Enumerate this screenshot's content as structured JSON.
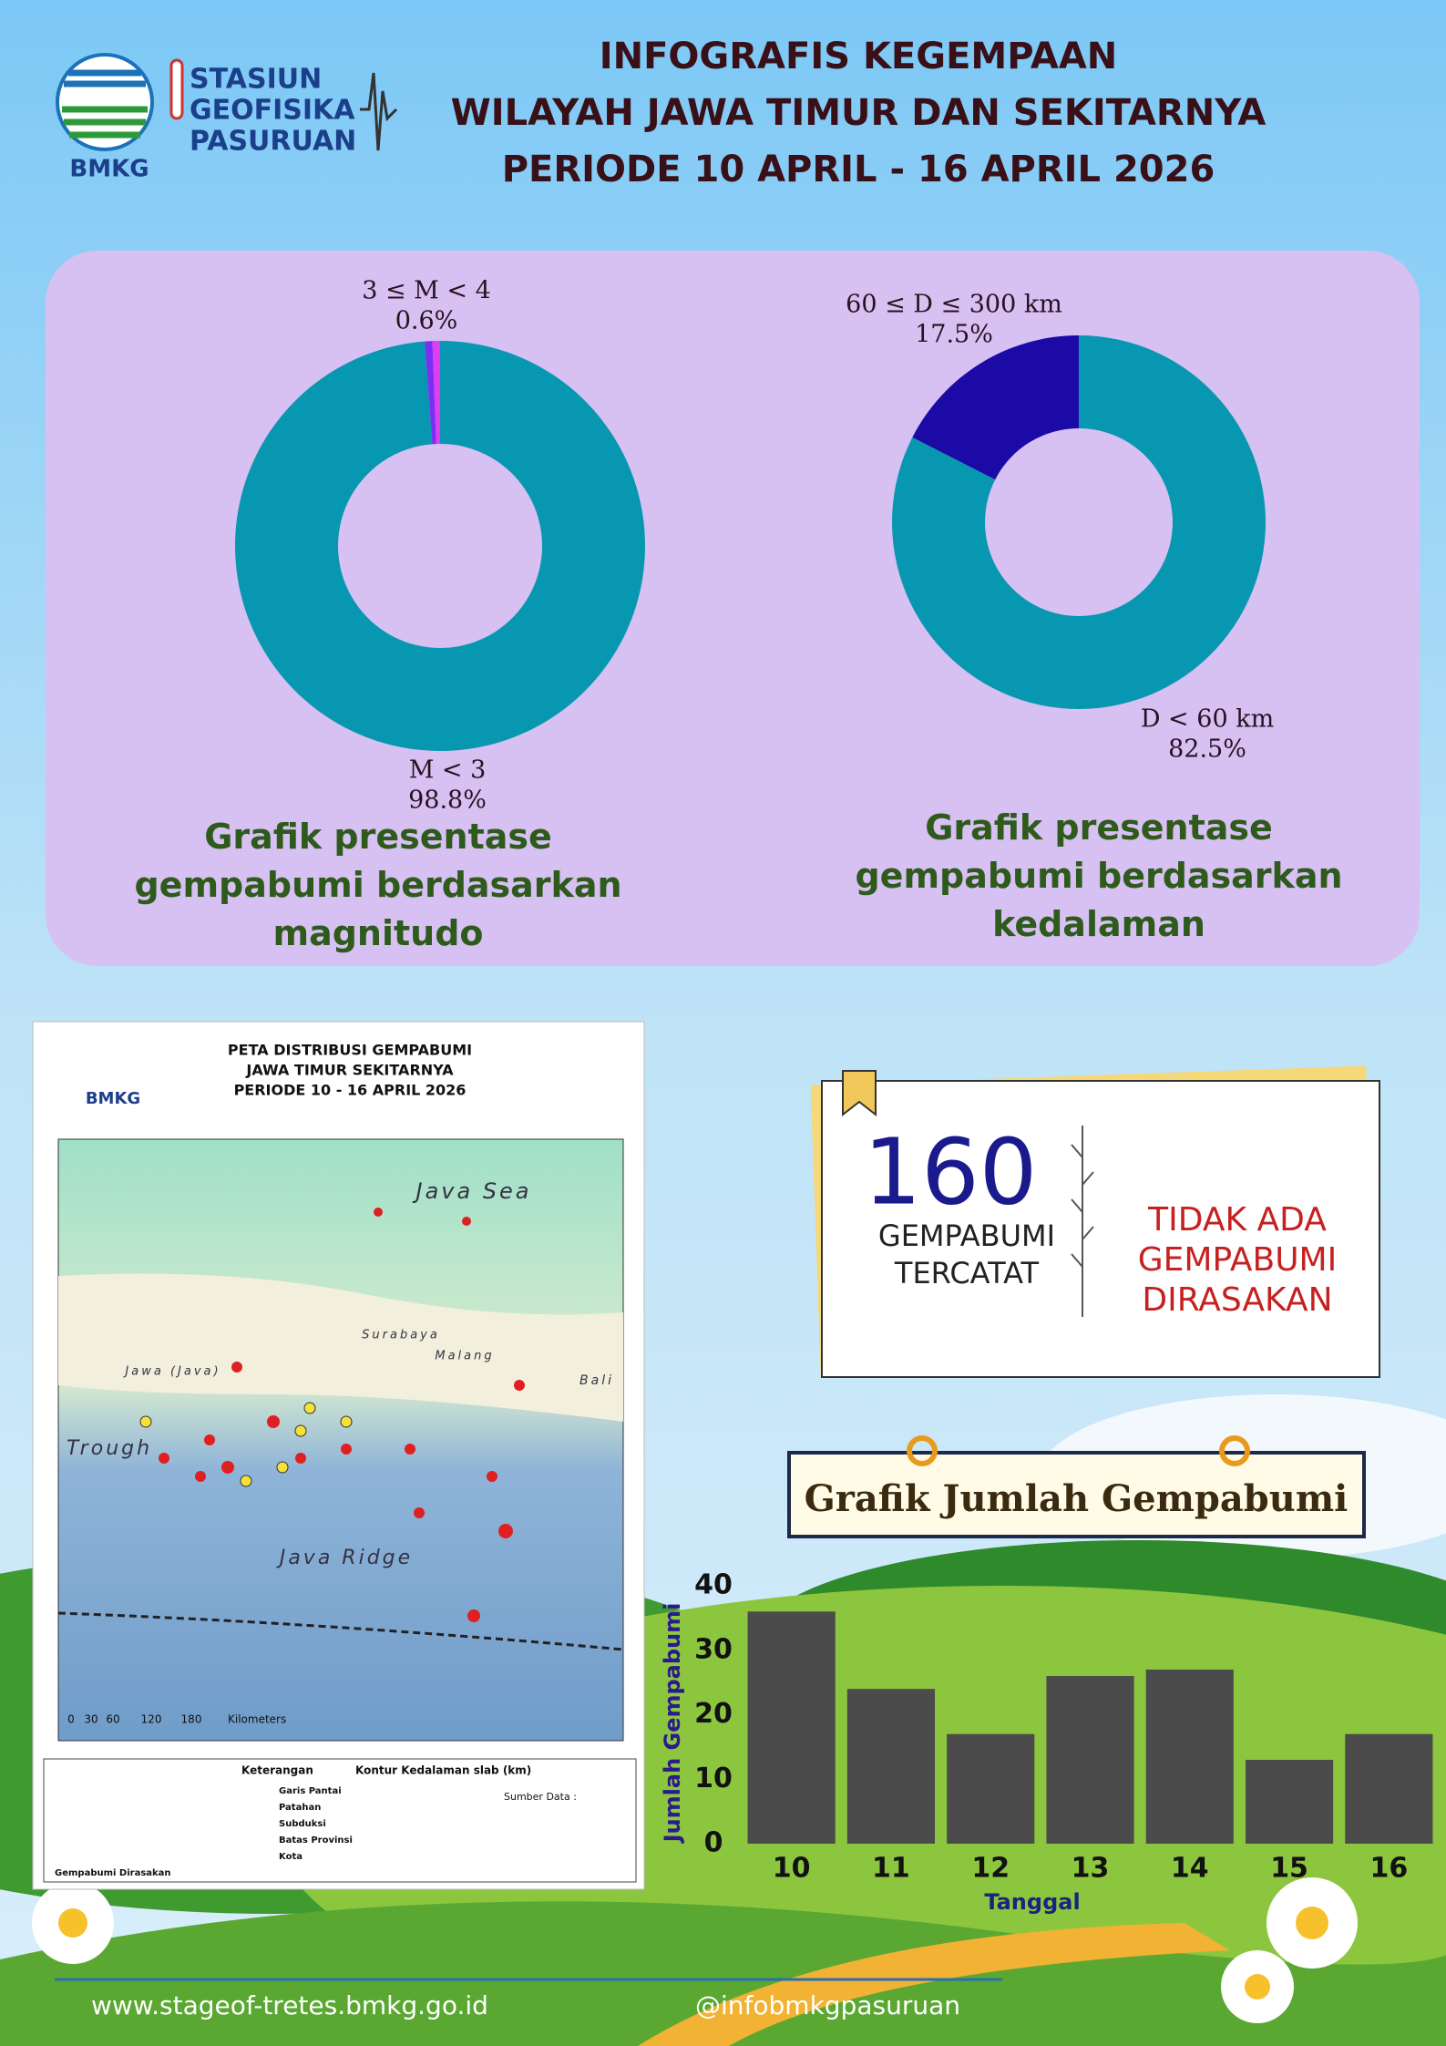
{
  "header": {
    "logo": {
      "lines": [
        "STASIUN",
        "GEOFISIKA",
        "PASURUAN"
      ],
      "org": "BMKG"
    },
    "title": [
      "INFOGRAFIS KEGEMPAAN",
      "WILAYAH JAWA TIMUR DAN SEKITARNYA",
      "PERIODE 10 APRIL - 16 APRIL 2026"
    ]
  },
  "chart_data": [
    {
      "type": "pie",
      "title": "Grafik presentase gempabumi berdasarkan magnitudo",
      "categories": [
        "M < 3",
        "3 ≤ M < 4",
        null
      ],
      "values": [
        98.8,
        0.6,
        0.6
      ],
      "value_labels": [
        "98.8%",
        "0.6%",
        null
      ],
      "colors": [
        "#0897b1",
        "#7b2ff2",
        "#e03cf0"
      ]
    },
    {
      "type": "pie",
      "title": "Grafik presentase gempabumi berdasarkan kedalaman",
      "categories": [
        "D < 60 km",
        "60 ≤ D ≤ 300 km"
      ],
      "values": [
        82.5,
        17.5
      ],
      "value_labels": [
        "82.5%",
        "17.5%"
      ],
      "colors": [
        "#0897b1",
        "#1b0aa6"
      ]
    },
    {
      "type": "bar",
      "title": "Grafik Jumlah Gempabumi",
      "x_label": "Tanggal",
      "y_label": "Jumlah Gempabumi",
      "categories": [
        "10",
        "11",
        "12",
        "13",
        "14",
        "15",
        "16"
      ],
      "values": [
        36,
        24,
        17,
        26,
        27,
        13,
        17
      ],
      "color": "#4b4b4b",
      "ylim": [
        0,
        40
      ],
      "yticks": [
        0,
        10,
        20,
        30,
        40
      ],
      "grid": false
    }
  ],
  "map": {
    "org": "BMKG",
    "title": [
      "PETA DISTRIBUSI GEMPABUMI",
      "JAWA TIMUR SEKITARNYA",
      "PERIODE 10 - 16 APRIL 2026"
    ],
    "places": [
      "Java Sea",
      "Trough",
      "Java Ridge",
      "Surabaya",
      "Jawa (Java)",
      "Malang",
      "Bali"
    ],
    "scale": [
      "0",
      "30",
      "60",
      "120",
      "180",
      "Kilometers"
    ],
    "legend": {
      "title": "Keterangan",
      "items": [
        "Garis Pantai",
        "Patahan",
        "Subduksi",
        "Batas Provinsi",
        "Kota"
      ],
      "contour_title": "Kontur Kedalaman slab (km)",
      "sources_title": "Sumber Data :",
      "felt": "Gempabumi Dirasakan"
    }
  },
  "summary": {
    "count": 160,
    "count_label": [
      "GEMPABUMI",
      "TERCATAT"
    ],
    "felt": [
      "TIDAK ADA",
      "GEMPABUMI",
      "DIRASAKAN"
    ]
  },
  "footer": {
    "website": "www.stageof-tretes.bmkg.go.id",
    "social": "@infobmkgpasuruan"
  }
}
